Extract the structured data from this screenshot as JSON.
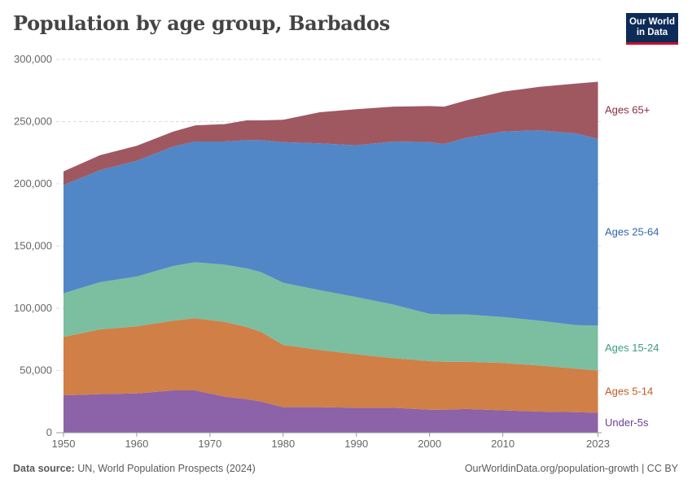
{
  "header": {
    "title": "Population by age group, Barbados",
    "logo_line1": "Our World",
    "logo_line2": "in Data"
  },
  "footer": {
    "source_label": "Data source:",
    "source_text": "UN, World Population Prospects (2024)",
    "url": "OurWorldinData.org/population-growth | CC BY"
  },
  "chart_data": {
    "type": "area",
    "stacked": true,
    "title": "Population by age group, Barbados",
    "x": [
      1950,
      1955,
      1960,
      1965,
      1968,
      1972,
      1975,
      1977,
      1980,
      1985,
      1990,
      1995,
      2000,
      2002,
      2005,
      2010,
      2015,
      2020,
      2023
    ],
    "xticks": [
      1950,
      1960,
      1970,
      1980,
      1990,
      2000,
      2010,
      2023
    ],
    "xtick_labels": [
      "1950",
      "1960",
      "1970",
      "1980",
      "1990",
      "2000",
      "2010",
      "2023"
    ],
    "xlim": [
      1949,
      2023.5
    ],
    "ylim": [
      0,
      300000
    ],
    "yticks": [
      0,
      50000,
      100000,
      150000,
      200000,
      250000,
      300000
    ],
    "ytick_labels": [
      "0",
      "50,000",
      "100,000",
      "150,000",
      "200,000",
      "250,000",
      "300,000"
    ],
    "grid": "horizontal dashed",
    "series": [
      {
        "name": "Under-5s",
        "color": "#8c62a8",
        "label_color": "#6b3d92",
        "values": [
          30000,
          31000,
          31500,
          34000,
          34000,
          29000,
          27000,
          25000,
          20500,
          20500,
          20000,
          20000,
          18500,
          18500,
          19000,
          18000,
          17000,
          16500,
          16000
        ]
      },
      {
        "name": "Ages 5-14",
        "color": "#d07f47",
        "label_color": "#c05a24",
        "values": [
          47000,
          52000,
          54000,
          56000,
          58000,
          60000,
          58000,
          56000,
          50000,
          46000,
          43000,
          40000,
          39000,
          38500,
          38000,
          38000,
          37000,
          35000,
          34000
        ]
      },
      {
        "name": "Ages 15-24",
        "color": "#7cbea0",
        "label_color": "#3f9d7b",
        "values": [
          35000,
          38000,
          40000,
          44000,
          45000,
          46000,
          47000,
          48000,
          50000,
          48000,
          46000,
          43000,
          38000,
          38000,
          38000,
          37000,
          36000,
          35000,
          36000
        ]
      },
      {
        "name": "Ages 25-64",
        "color": "#5187c7",
        "label_color": "#3366aa",
        "values": [
          87000,
          90000,
          93000,
          96000,
          97000,
          99000,
          103000,
          106000,
          113000,
          118000,
          122000,
          131000,
          138000,
          137000,
          142000,
          149000,
          153000,
          154000,
          150000
        ]
      },
      {
        "name": "Ages 65+",
        "color": "#a05860",
        "label_color": "#8b2e3f",
        "values": [
          11000,
          12000,
          12000,
          12000,
          13000,
          14000,
          16000,
          16000,
          18000,
          25000,
          29000,
          28000,
          29000,
          30000,
          30000,
          32000,
          35000,
          40000,
          46000
        ]
      }
    ]
  }
}
